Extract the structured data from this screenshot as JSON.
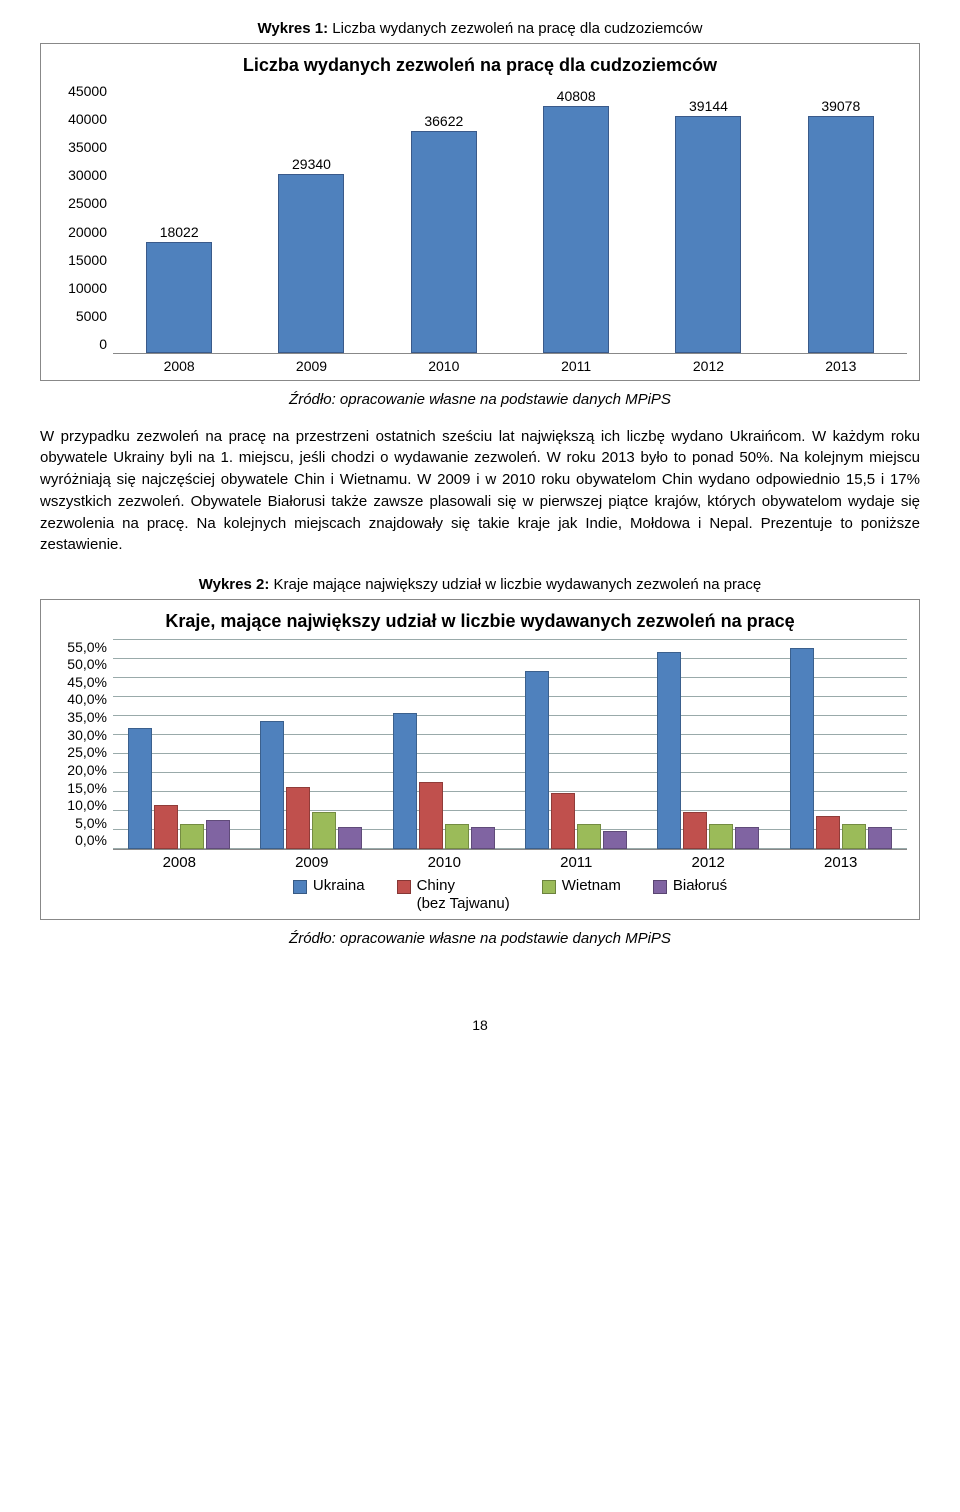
{
  "figure1_caption_prefix": "Wykres 1:",
  "figure1_caption_rest": " Liczba wydanych zezwoleń na pracę dla cudzoziemców",
  "chart1": {
    "title": "Liczba wydanych zezwoleń na pracę dla cudzoziemców",
    "categories": [
      "2008",
      "2009",
      "2010",
      "2011",
      "2012",
      "2013"
    ],
    "values": [
      18022,
      29340,
      36622,
      40808,
      39144,
      39078
    ],
    "bar_color": "#4f81bd",
    "bar_border": "#3a5a8a",
    "ylim_max": 45000,
    "yticks": [
      "45000",
      "40000",
      "35000",
      "30000",
      "25000",
      "20000",
      "15000",
      "10000",
      "5000",
      "0"
    ],
    "background": "#ffffff",
    "label_fontsize": 14
  },
  "source1": "Źródło: opracowanie własne na podstawie danych MPiPS",
  "body_text": "W przypadku zezwoleń na pracę na przestrzeni ostatnich sześciu lat największą ich liczbę wydano Ukraińcom. W każdym roku obywatele Ukrainy byli na 1. miejscu, jeśli chodzi o wydawanie zezwoleń. W roku 2013 było to ponad 50%. Na kolejnym miejscu wyróżniają się najczęściej obywatele Chin i Wietnamu. W 2009 i w 2010 roku obywatelom Chin wydano odpowiednio 15,5 i 17% wszystkich zezwoleń. Obywatele Białorusi także zawsze plasowali się w pierwszej piątce krajów, których obywatelom wydaje się zezwolenia na pracę. Na kolejnych miejscach znajdowały się takie kraje jak Indie, Mołdowa i Nepal. Prezentuje to poniższe zestawienie.",
  "figure2_caption_prefix": "Wykres 2:",
  "figure2_caption_rest": " Kraje mające największy udział w liczbie wydawanych zezwoleń na pracę",
  "chart2": {
    "title": "Kraje, mające największy udział w liczbie wydawanych zezwoleń na pracę",
    "categories": [
      "2008",
      "2009",
      "2010",
      "2011",
      "2012",
      "2013"
    ],
    "series": [
      {
        "name": "Ukraina",
        "label": "Ukraina",
        "color": "#4f81bd",
        "values": [
          31,
          33,
          35,
          46,
          51,
          52
        ]
      },
      {
        "name": "Chiny",
        "label": "Chiny\n(bez Tajwanu)",
        "color": "#c0504d",
        "values": [
          11,
          15.5,
          17,
          14,
          9,
          8
        ]
      },
      {
        "name": "Wietnam",
        "label": "Wietnam",
        "color": "#9bbb59",
        "values": [
          6,
          9,
          6,
          6,
          6,
          6
        ]
      },
      {
        "name": "Bialorus",
        "label": "Białoruś",
        "color": "#8064a2",
        "values": [
          7,
          5,
          5,
          4,
          5,
          5
        ]
      }
    ],
    "ylim_max": 55,
    "yticks": [
      "55,0%",
      "50,0%",
      "45,0%",
      "40,0%",
      "35,0%",
      "30,0%",
      "25,0%",
      "20,0%",
      "15,0%",
      "10,0%",
      "5,0%",
      "0,0%"
    ]
  },
  "source2": "Źródło: opracowanie własne na podstawie danych MPiPS",
  "page_number": "18"
}
